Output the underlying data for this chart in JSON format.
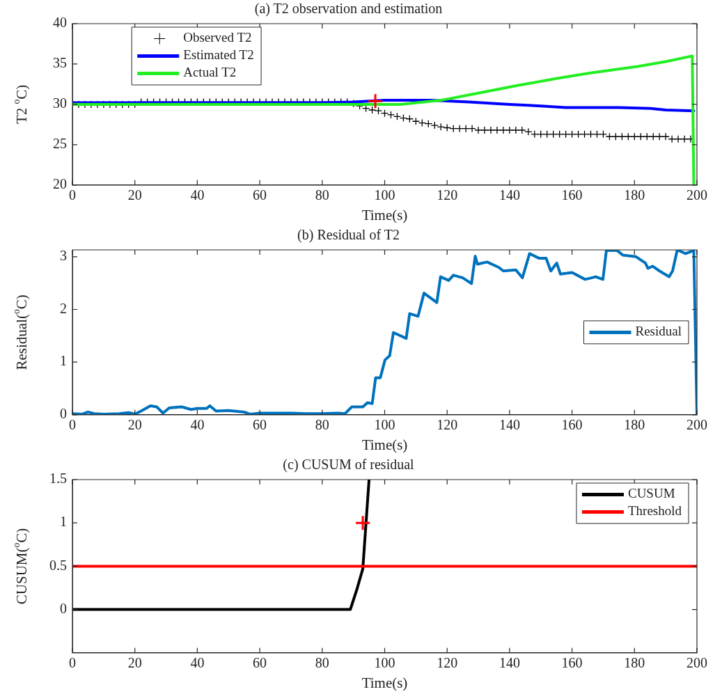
{
  "chart_data": [
    {
      "type": "line",
      "title": "(a) T2 observation and estimation",
      "xlabel": "Time(s)",
      "ylabel": "T2 $^{o}$C)",
      "xlim": [
        0,
        200
      ],
      "xticks": [
        0,
        20,
        40,
        60,
        80,
        100,
        120,
        140,
        160,
        180,
        200
      ],
      "ylim": [
        20,
        40
      ],
      "yticks": [
        20,
        25,
        30,
        35,
        40
      ],
      "legend": "top left",
      "series": [
        {
          "type": "scatter",
          "name": "Observed T2",
          "color": "#000000",
          "marker": "cross",
          "x": [
            0,
            2,
            4,
            6,
            8,
            10,
            12,
            14,
            16,
            18,
            20,
            22,
            24,
            26,
            28,
            30,
            32,
            34,
            36,
            38,
            40,
            42,
            44,
            46,
            48,
            50,
            52,
            54,
            56,
            58,
            60,
            62,
            64,
            66,
            68,
            70,
            72,
            74,
            76,
            78,
            80,
            82,
            84,
            86,
            88,
            90,
            92,
            94,
            96,
            98,
            100,
            102,
            104,
            106,
            108,
            110,
            112,
            114,
            116,
            118,
            120,
            122,
            124,
            126,
            128,
            130,
            132,
            134,
            136,
            138,
            140,
            142,
            144,
            146,
            148,
            150,
            152,
            154,
            156,
            158,
            160,
            162,
            164,
            166,
            168,
            170,
            172,
            174,
            176,
            178,
            180,
            182,
            184,
            186,
            188,
            190,
            192,
            194,
            196,
            198
          ],
          "values": [
            30,
            30,
            30,
            30,
            30,
            30,
            30,
            30,
            30,
            30,
            30,
            30.3,
            30.3,
            30.3,
            30.3,
            30.3,
            30.3,
            30.3,
            30.3,
            30.3,
            30.3,
            30.3,
            30.3,
            30.3,
            30.3,
            30.3,
            30.3,
            30.3,
            30.3,
            30.3,
            30.3,
            30.3,
            30.3,
            30.3,
            30.3,
            30.3,
            30.3,
            30.3,
            30.3,
            30.3,
            30.3,
            30.3,
            30.3,
            30.3,
            30.3,
            30.1,
            29.8,
            29.5,
            29.3,
            29.2,
            28.9,
            28.7,
            28.5,
            28.3,
            28.2,
            27.9,
            27.7,
            27.6,
            27.4,
            27.2,
            27.1,
            27,
            27,
            27,
            27,
            26.8,
            26.8,
            26.8,
            26.8,
            26.8,
            26.8,
            26.8,
            26.8,
            26.6,
            26.3,
            26.3,
            26.3,
            26.3,
            26.3,
            26.3,
            26.3,
            26.3,
            26.3,
            26.3,
            26.3,
            26.3,
            26,
            26,
            26,
            26,
            26,
            26,
            26,
            26,
            26,
            26,
            25.7,
            25.7,
            25.7,
            25.7
          ]
        },
        {
          "name": "Estimated T2",
          "color": "#0000ff",
          "x": [
            0,
            20,
            40,
            60,
            80,
            90,
            100,
            104,
            115,
            127,
            140,
            150,
            158,
            175,
            185,
            190,
            199
          ],
          "values": [
            30.2,
            30.2,
            30.2,
            30.2,
            30.2,
            30.3,
            30.5,
            30.5,
            30.5,
            30.3,
            30.0,
            29.8,
            29.6,
            29.6,
            29.5,
            29.3,
            29.2
          ]
        },
        {
          "name": "Actual T2",
          "color": "#22ee22",
          "x": [
            0,
            50,
            90,
            100,
            105,
            118,
            130,
            142,
            155,
            166,
            181,
            190,
            198.5,
            199
          ],
          "values": [
            30,
            30,
            30,
            30,
            30,
            30.5,
            31.4,
            32.3,
            33.2,
            33.9,
            34.7,
            35.3,
            36,
            20
          ]
        },
        {
          "type": "scatter",
          "color": "#ff0000",
          "marker": "cross",
          "x": [
            97
          ],
          "values": [
            30.4
          ]
        }
      ]
    },
    {
      "type": "line",
      "title": "(b) Residual of T2",
      "xlabel": "Time(s)",
      "ylabel": "Residual($^{o}$C)",
      "xlim": [
        0,
        200
      ],
      "xticks": [
        0,
        20,
        40,
        60,
        80,
        100,
        120,
        140,
        160,
        180,
        200
      ],
      "ylim": [
        0,
        3.13
      ],
      "yticks": [
        0,
        1,
        2,
        3
      ],
      "legend": "right",
      "series": [
        {
          "name": "Residual",
          "color": "#0072bd",
          "x": [
            0,
            3,
            5,
            7,
            10,
            15,
            18,
            20,
            22,
            25,
            27,
            29,
            31,
            35,
            38,
            40,
            43,
            44,
            46,
            50,
            55,
            57,
            60,
            65,
            70,
            75,
            80,
            85,
            87.3,
            89.5,
            93,
            94.5,
            96,
            97.1,
            98.6,
            100.1,
            101.6,
            102.8,
            106.9,
            108,
            110.7,
            112.6,
            116.7,
            117.9,
            120.5,
            122,
            125,
            127.8,
            129,
            129.7,
            132.8,
            136.5,
            138,
            142,
            144.1,
            146.4,
            149.5,
            151.7,
            153.2,
            155.1,
            156.3,
            160,
            164.2,
            167.6,
            169.9,
            171,
            174.4,
            176.3,
            180.5,
            183.5,
            184.3,
            185.8,
            188,
            191.1,
            192.2,
            193.7,
            196.3,
            199,
            200
          ],
          "values": [
            0.02,
            0.01,
            0.05,
            0.02,
            0.01,
            0.02,
            0.04,
            0.01,
            0.07,
            0.17,
            0.15,
            0.03,
            0.13,
            0.15,
            0.1,
            0.12,
            0.12,
            0.17,
            0.07,
            0.08,
            0.05,
            0.01,
            0.03,
            0.03,
            0.03,
            0.02,
            0.02,
            0.03,
            0.02,
            0.15,
            0.15,
            0.23,
            0.21,
            0.7,
            0.7,
            1.04,
            1.12,
            1.56,
            1.45,
            1.92,
            1.87,
            2.31,
            2.13,
            2.62,
            2.55,
            2.65,
            2.6,
            2.49,
            3.01,
            2.86,
            2.9,
            2.8,
            2.73,
            2.75,
            2.6,
            3.06,
            2.97,
            2.97,
            2.73,
            2.88,
            2.67,
            2.7,
            2.57,
            2.62,
            2.57,
            3.12,
            3.12,
            3.03,
            3.0,
            2.88,
            2.78,
            2.82,
            2.73,
            2.62,
            2.73,
            3.13,
            3.06,
            3.12,
            0
          ]
        }
      ]
    },
    {
      "type": "line",
      "title": "(c) CUSUM of residual",
      "xlabel": "Time(s)",
      "ylabel": "CUSUM($^{o}$C)",
      "xlim": [
        0,
        200
      ],
      "xticks": [
        0,
        20,
        40,
        60,
        80,
        100,
        120,
        140,
        160,
        180,
        200
      ],
      "ylim": [
        -0.5,
        1.5
      ],
      "yticks": [
        0,
        0.5,
        1,
        1.5
      ],
      "legend": "top right",
      "series": [
        {
          "name": "CUSUM",
          "color": "#000000",
          "x": [
            0,
            89,
            91,
            93,
            95
          ],
          "values": [
            0,
            0,
            0.22,
            0.47,
            1.5
          ]
        },
        {
          "name": "Threshold",
          "color": "#ff0000",
          "x": [
            0,
            200
          ],
          "values": [
            0.5,
            0.5
          ]
        },
        {
          "type": "scatter",
          "color": "#ff0000",
          "marker": "cross",
          "x": [
            93
          ],
          "values": [
            1
          ]
        }
      ]
    }
  ]
}
